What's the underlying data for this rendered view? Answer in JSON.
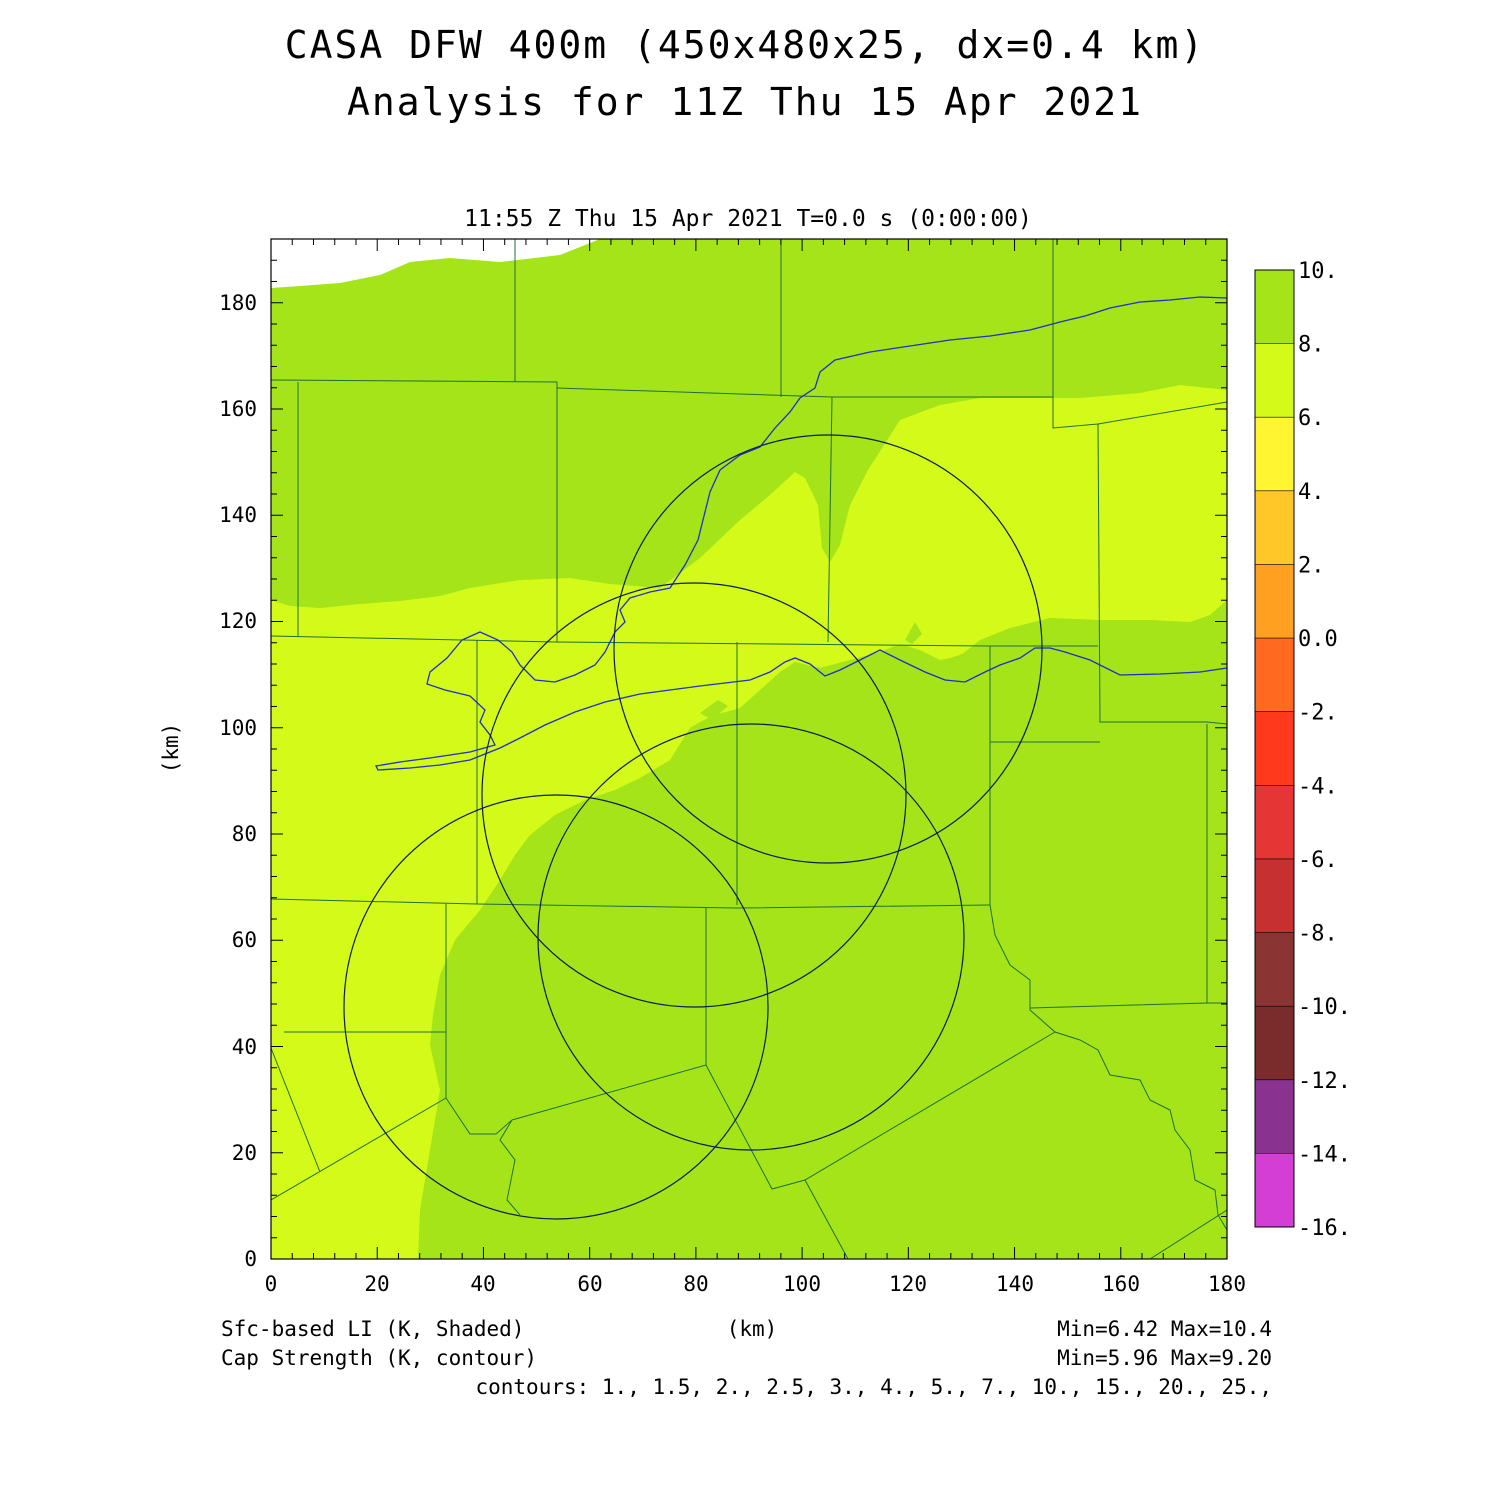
{
  "title": {
    "line1": "CASA DFW 400m (450x480x25, dx=0.4 km)",
    "line2": "Analysis for 11Z Thu 15 Apr 2021"
  },
  "plot_time_label": "11:55 Z Thu 15 Apr 2021   T=0.0 s (0:00:00)",
  "axes": {
    "x_label": "(km)",
    "y_label": "(km)",
    "x_ticks": [
      "0",
      "20",
      "40",
      "60",
      "80",
      "100",
      "120",
      "140",
      "160",
      "180"
    ],
    "y_ticks": [
      "0",
      "20",
      "40",
      "60",
      "80",
      "100",
      "120",
      "140",
      "160",
      "180"
    ],
    "x_range_km": [
      0,
      180
    ],
    "y_range_km": [
      0,
      192
    ]
  },
  "colorbar": {
    "labels": [
      "10.",
      "8.",
      "6.",
      "4.",
      "2.",
      "0.0",
      "-2.",
      "-4.",
      "-6.",
      "-8.",
      "-10.",
      "-12.",
      "-14.",
      "-16."
    ],
    "colors": [
      "#a4e418",
      "#d4fa1a",
      "#fff530",
      "#ffc828",
      "#ffa020",
      "#ff6a20",
      "#ff3a1c",
      "#e63535",
      "#c63030",
      "#8c3030",
      "#783030",
      "#8a3290",
      "#c032b8",
      "#e040e0"
    ]
  },
  "field_colors": {
    "ge8": "#a4e418",
    "6to8": "#d4fa1a",
    "missing": "#ffffff"
  },
  "footer": {
    "field1": "Sfc-based LI (K, Shaded)",
    "field2": "Cap Strength (K, contour)",
    "unit_center": "(km)",
    "minmax1": "Min=6.42  Max=10.4",
    "minmax2": "Min=5.96  Max=9.20",
    "contours": "contours: 1., 1.5, 2., 2.5, 3., 4., 5., 7., 10., 15., 20., 25.,"
  },
  "radar_rings": [
    {
      "cx_km": 105,
      "cy_km": 115,
      "r_km": 40
    },
    {
      "cx_km": 79,
      "cy_km": 87,
      "r_km": 40
    },
    {
      "cx_km": 90,
      "cy_km": 61,
      "r_km": 40
    },
    {
      "cx_km": 54,
      "cy_km": 47,
      "r_km": 40
    }
  ]
}
